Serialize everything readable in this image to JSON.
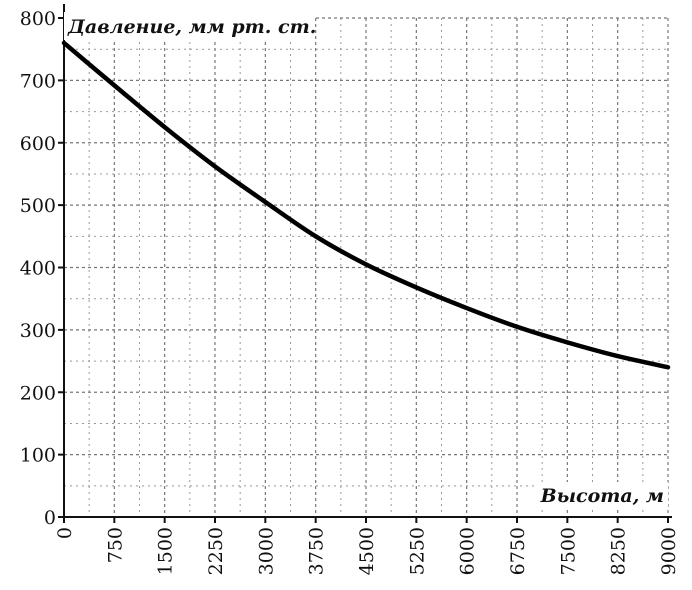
{
  "chart_data": {
    "type": "line",
    "title": "",
    "ylabel": "Давление, мм рт. ст.",
    "xlabel": "Высота, м",
    "xlim": [
      0,
      9000
    ],
    "ylim": [
      0,
      800
    ],
    "x_ticks": [
      "0",
      "750",
      "1500",
      "2250",
      "3000",
      "3750",
      "4500",
      "5250",
      "6000",
      "6750",
      "7500",
      "8250",
      "9000"
    ],
    "y_ticks": [
      "0",
      "100",
      "200",
      "300",
      "400",
      "500",
      "600",
      "700",
      "800"
    ],
    "grid": true,
    "series": [
      {
        "x": [
          0,
          750,
          1500,
          2250,
          3000,
          3750,
          4500,
          5250,
          6000,
          6750,
          7500,
          8250,
          9000
        ],
        "y": [
          760,
          692,
          625,
          562,
          505,
          450,
          405,
          368,
          335,
          305,
          280,
          258,
          240
        ]
      }
    ]
  }
}
